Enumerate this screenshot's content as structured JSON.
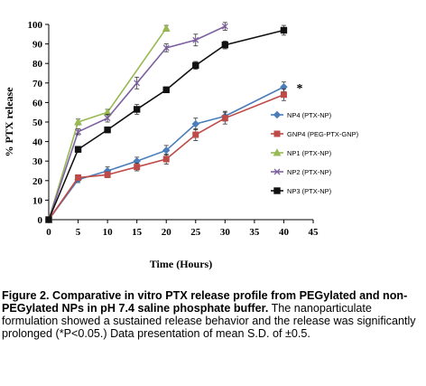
{
  "chart_data": {
    "type": "line",
    "ylabel": "% PTX release",
    "xlabel": "Time (Hours)",
    "xlim": [
      0,
      45
    ],
    "ylim": [
      0,
      100
    ],
    "x_ticks": [
      "0",
      "5",
      "10",
      "15",
      "20",
      "25",
      "30",
      "35",
      "40",
      "45"
    ],
    "y_ticks": [
      "0",
      "10",
      "20",
      "30",
      "40",
      "50",
      "60",
      "70",
      "80",
      "90",
      "100"
    ],
    "grid": false,
    "legend_position": "right",
    "annotation": "*",
    "series": [
      {
        "name": "NP4 (PTX-NP)",
        "color": "#4a7ebb",
        "marker": "diamond",
        "x": [
          0,
          5,
          10,
          15,
          20,
          25,
          30,
          40
        ],
        "y": [
          0,
          20.5,
          25,
          30,
          35.5,
          49,
          53,
          68
        ],
        "err": [
          0.5,
          1.5,
          2,
          2,
          2.5,
          3,
          2.5,
          2.5
        ]
      },
      {
        "name": "GNP4 (PEG-PTX-GNP)",
        "color": "#be4b48",
        "marker": "square",
        "x": [
          0,
          5,
          10,
          15,
          20,
          25,
          30,
          40
        ],
        "y": [
          0,
          21.5,
          23,
          27,
          31,
          43.5,
          52,
          64
        ],
        "err": [
          0.5,
          1.5,
          1.5,
          2,
          2.5,
          3,
          3,
          3
        ]
      },
      {
        "name": "NP1 (PTX-NP)",
        "color": "#98b954",
        "marker": "triangle",
        "x": [
          0,
          5,
          10,
          20
        ],
        "y": [
          0,
          50,
          55,
          98
        ],
        "err": [
          0.5,
          1.5,
          1.5,
          1.5
        ]
      },
      {
        "name": "NP2 (PTX-NP)",
        "color": "#7d60a0",
        "marker": "x",
        "x": [
          0,
          5,
          10,
          15,
          20,
          25,
          30
        ],
        "y": [
          0,
          45,
          52,
          70,
          88,
          92,
          99
        ],
        "err": [
          0.5,
          1.5,
          2,
          3,
          2,
          3,
          2
        ]
      },
      {
        "name": "NP3 (PTX-NP)",
        "color": "#111111",
        "marker": "square-black",
        "x": [
          0,
          5,
          10,
          15,
          20,
          25,
          30,
          40
        ],
        "y": [
          0,
          36,
          46,
          56.5,
          66.5,
          79,
          89.5,
          97
        ],
        "err": [
          0.5,
          1.5,
          1.5,
          2.5,
          1.5,
          2,
          2,
          2.5
        ]
      }
    ]
  },
  "caption": {
    "title": "Figure 2. Comparative in vitro PTX release profile from PEGylated and non-PEGylated NPs in pH 7.4 saline phosphate buffer.",
    "body": "The nanoparticulate formulation showed a sustained release behavior and the release was significantly prolonged (*P<0.05.) Data presentation of mean S.D. of ±0.5."
  }
}
